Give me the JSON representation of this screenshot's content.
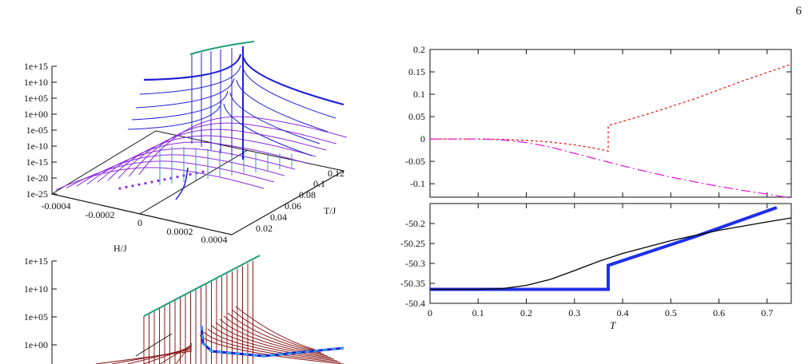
{
  "page": {
    "number": "6"
  },
  "chart_data": [
    {
      "type": "surface3d",
      "panel": "top-left",
      "zlabels": [
        "1e+15",
        "1e+10",
        "1e+05",
        "1e+00",
        "1e-05",
        "1e-10",
        "1e-15",
        "1e-20",
        "1e-25"
      ],
      "xlabel": "H/J",
      "ylabel": "T/J",
      "xticks": [
        "-0.0004",
        "-0.0002",
        "0",
        "0.0002",
        "0.0004"
      ],
      "yticks": [
        "0.02",
        "0.04",
        "0.06",
        "0.08",
        "0.1",
        "0.12"
      ],
      "series_colors": [
        "#1f1fd8",
        "#8a2be2",
        "#3a8fd8",
        "#1f9e7a"
      ]
    },
    {
      "type": "surface3d",
      "panel": "bottom-left",
      "zlabels": [
        "1e+15",
        "1e+10",
        "1e+05",
        "1e+00"
      ],
      "series_colors": [
        "#8b1a1a",
        "#1f9e7a",
        "#1f1fd8",
        "#2bb5d8"
      ]
    },
    {
      "type": "line",
      "panel": "top-right",
      "xlim": [
        0,
        0.75
      ],
      "ylim": [
        -0.13,
        0.2
      ],
      "yticks": [
        "0.2",
        "0.15",
        "0.1",
        "0.05",
        "0",
        "-0.05",
        "-0.1"
      ],
      "series": [
        {
          "style": "dotted",
          "color": "#e8201a",
          "points": [
            [
              0,
              0
            ],
            [
              0.05,
              0
            ],
            [
              0.1,
              0
            ],
            [
              0.15,
              -0.001
            ],
            [
              0.2,
              -0.003
            ],
            [
              0.25,
              -0.007
            ],
            [
              0.3,
              -0.013
            ],
            [
              0.35,
              -0.022
            ],
            [
              0.37,
              -0.027
            ],
            [
              0.37,
              0.03
            ],
            [
              0.45,
              0.055
            ],
            [
              0.55,
              0.09
            ],
            [
              0.65,
              0.13
            ],
            [
              0.75,
              0.167
            ]
          ]
        },
        {
          "style": "dash-dot",
          "color": "#e020d8",
          "points": [
            [
              0,
              0
            ],
            [
              0.05,
              0
            ],
            [
              0.1,
              0
            ],
            [
              0.15,
              -0.002
            ],
            [
              0.2,
              -0.008
            ],
            [
              0.25,
              -0.018
            ],
            [
              0.3,
              -0.032
            ],
            [
              0.35,
              -0.046
            ],
            [
              0.4,
              -0.06
            ],
            [
              0.45,
              -0.073
            ],
            [
              0.5,
              -0.085
            ],
            [
              0.55,
              -0.096
            ],
            [
              0.6,
              -0.106
            ],
            [
              0.65,
              -0.115
            ],
            [
              0.7,
              -0.123
            ],
            [
              0.75,
              -0.132
            ]
          ]
        }
      ]
    },
    {
      "type": "line",
      "panel": "bottom-right",
      "xlabel": "T",
      "xlim": [
        0,
        0.75
      ],
      "ylim": [
        -50.4,
        -50.15
      ],
      "xticks": [
        "0",
        "0.1",
        "0.2",
        "0.3",
        "0.4",
        "0.5",
        "0.6",
        "0.7"
      ],
      "yticks": [
        "-50.2",
        "-50.25",
        "-50.3",
        "-50.35",
        "-50.4"
      ],
      "series": [
        {
          "style": "solid-thick",
          "color": "#1f2fe8",
          "points": [
            [
              0,
              -50.365
            ],
            [
              0.37,
              -50.365
            ],
            [
              0.37,
              -50.305
            ],
            [
              0.45,
              -50.273
            ],
            [
              0.55,
              -50.233
            ],
            [
              0.65,
              -50.19
            ],
            [
              0.72,
              -50.16
            ]
          ]
        },
        {
          "style": "solid",
          "color": "#000000",
          "points": [
            [
              0,
              -50.365
            ],
            [
              0.1,
              -50.365
            ],
            [
              0.15,
              -50.363
            ],
            [
              0.2,
              -50.355
            ],
            [
              0.25,
              -50.34
            ],
            [
              0.3,
              -50.318
            ],
            [
              0.35,
              -50.295
            ],
            [
              0.4,
              -50.275
            ],
            [
              0.5,
              -50.243
            ],
            [
              0.6,
              -50.217
            ],
            [
              0.7,
              -50.196
            ],
            [
              0.75,
              -50.186
            ]
          ]
        }
      ]
    }
  ]
}
